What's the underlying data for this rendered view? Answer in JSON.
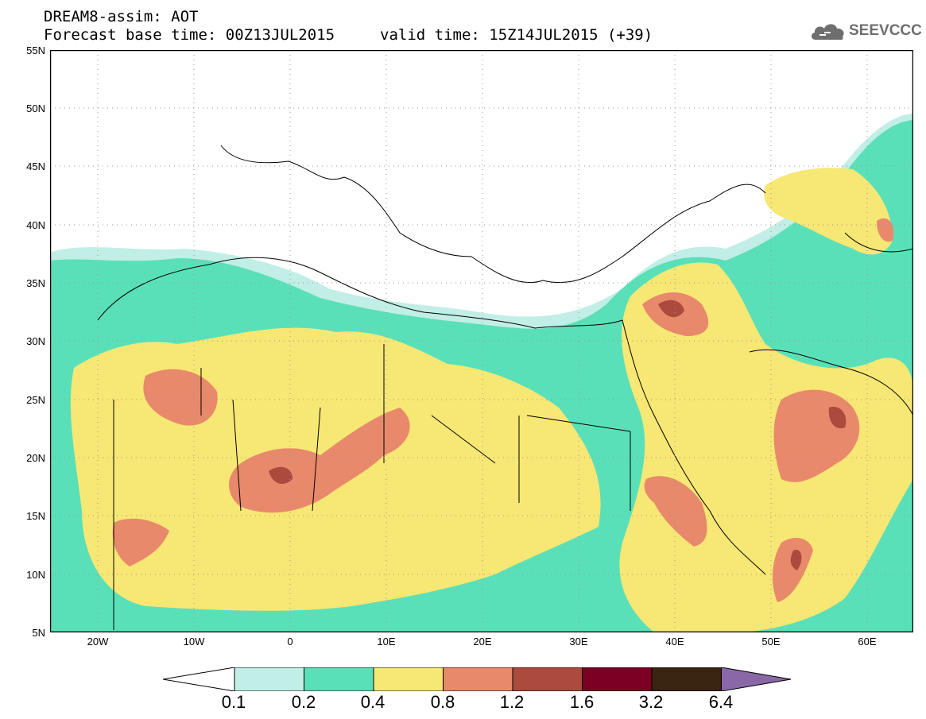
{
  "header": {
    "title": "DREAM8-assim: AOT",
    "base_time": "Forecast base time: 00Z13JUL2015",
    "valid_time": "valid time: 15Z14JUL2015 (+39)"
  },
  "logo": {
    "text": "SEEVCCC",
    "icon": "cloud-icon"
  },
  "map": {
    "lat_labels": [
      "55N",
      "50N",
      "45N",
      "40N",
      "35N",
      "30N",
      "25N",
      "20N",
      "15N",
      "10N",
      "5N"
    ],
    "lon_labels": [
      "20W",
      "10W",
      "0",
      "10E",
      "20E",
      "30E",
      "40E",
      "50E",
      "60E"
    ],
    "field": "AOT"
  },
  "legend": {
    "thresholds": [
      "0.1",
      "0.2",
      "0.4",
      "0.8",
      "1.2",
      "1.6",
      "3.2",
      "6.4"
    ],
    "colors": [
      "#ffffff",
      "#c1eee6",
      "#5ae0b8",
      "#f7e774",
      "#e8896b",
      "#ac4a3e",
      "#7a0023",
      "#3a2412",
      "#8a68a8"
    ]
  }
}
